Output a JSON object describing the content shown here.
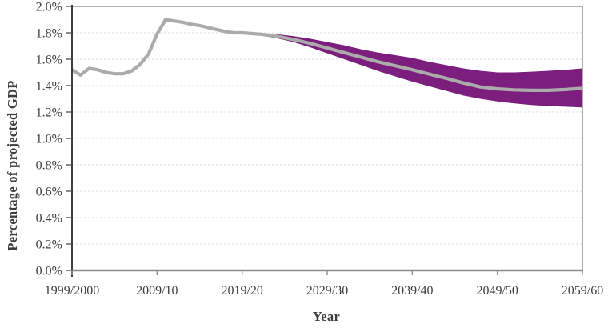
{
  "chart_data": {
    "type": "line",
    "subtype": "fan-chart-projection",
    "title": "",
    "xlabel": "Year",
    "ylabel": "Percentage of projected GDP",
    "x_range": [
      0,
      60
    ],
    "ylim": [
      0,
      2.0
    ],
    "grid": "dashed-horizontal",
    "legend": "none",
    "x_ticks": [
      {
        "pos": 0,
        "label": "1999/2000"
      },
      {
        "pos": 10,
        "label": "2009/10"
      },
      {
        "pos": 20,
        "label": "2019/20"
      },
      {
        "pos": 30,
        "label": "2029/30"
      },
      {
        "pos": 40,
        "label": "2039/40"
      },
      {
        "pos": 50,
        "label": "2049/50"
      },
      {
        "pos": 60,
        "label": "2059/60"
      }
    ],
    "y_ticks": [
      {
        "value": 0.0,
        "label": "0.0%"
      },
      {
        "value": 0.2,
        "label": "0.2%"
      },
      {
        "value": 0.4,
        "label": "0.4%"
      },
      {
        "value": 0.6,
        "label": "0.6%"
      },
      {
        "value": 0.8,
        "label": "0.8%"
      },
      {
        "value": 1.0,
        "label": "1.0%"
      },
      {
        "value": 1.2,
        "label": "1.2%"
      },
      {
        "value": 1.4,
        "label": "1.4%"
      },
      {
        "value": 1.6,
        "label": "1.6%"
      },
      {
        "value": 1.8,
        "label": "1.8%"
      },
      {
        "value": 2.0,
        "label": "2.0%"
      }
    ],
    "series": [
      {
        "name": "historical-outturn",
        "type": "line",
        "color": "#ABABAB",
        "x": [
          0,
          1,
          2,
          3,
          4,
          5,
          6,
          7,
          8,
          9,
          10,
          11,
          12,
          13,
          14,
          15,
          16,
          17,
          18,
          19,
          20
        ],
        "y": [
          1.52,
          1.48,
          1.53,
          1.52,
          1.5,
          1.49,
          1.49,
          1.51,
          1.56,
          1.64,
          1.79,
          1.9,
          1.89,
          1.88,
          1.865,
          1.855,
          1.84,
          1.825,
          1.81,
          1.8,
          1.8
        ]
      },
      {
        "name": "central-projection",
        "type": "line",
        "color": "#ABABAB",
        "x": [
          20,
          22,
          24,
          26,
          28,
          30,
          32,
          34,
          36,
          38,
          40,
          42,
          44,
          46,
          48,
          50,
          52,
          54,
          56,
          58,
          60
        ],
        "y": [
          1.8,
          1.79,
          1.775,
          1.75,
          1.72,
          1.685,
          1.65,
          1.615,
          1.58,
          1.55,
          1.52,
          1.487,
          1.455,
          1.42,
          1.39,
          1.375,
          1.368,
          1.364,
          1.364,
          1.37,
          1.38
        ]
      },
      {
        "name": "projection-uncertainty-band",
        "type": "band",
        "color": "#7B1E7D",
        "x": [
          20,
          22,
          24,
          26,
          28,
          30,
          32,
          34,
          36,
          38,
          40,
          42,
          44,
          46,
          48,
          50,
          52,
          54,
          56,
          58,
          60
        ],
        "upper": [
          1.8,
          1.8,
          1.79,
          1.775,
          1.755,
          1.73,
          1.705,
          1.675,
          1.65,
          1.63,
          1.61,
          1.58,
          1.555,
          1.53,
          1.512,
          1.5,
          1.5,
          1.505,
          1.512,
          1.52,
          1.53
        ],
        "lower": [
          1.8,
          1.78,
          1.76,
          1.73,
          1.69,
          1.645,
          1.6,
          1.555,
          1.51,
          1.47,
          1.43,
          1.395,
          1.36,
          1.325,
          1.3,
          1.28,
          1.265,
          1.253,
          1.245,
          1.24,
          1.235
        ]
      }
    ],
    "colors": {
      "band": "#7B1E7D",
      "line": "#ABABAB",
      "grid": "#DCDCDC",
      "frame": "#999999",
      "axis_bottom": "#8C8C8C",
      "axis_left": "#2B2B2B",
      "tick_dark": "#404040",
      "text": "#3D3D3D"
    }
  }
}
